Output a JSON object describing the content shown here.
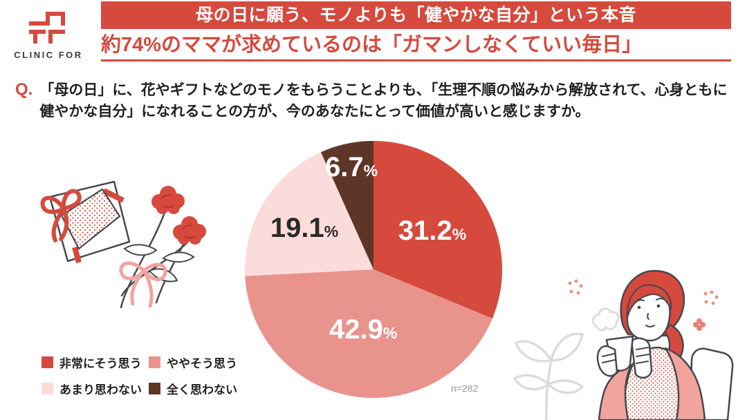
{
  "brand": {
    "name": "CLINIC FOR"
  },
  "header": {
    "banner_title": "母の日に願う、モノよりも「健やかな自分」という本音",
    "subtitle": "約74%のママが求めているのは「ガマンしなくていい毎日」"
  },
  "question": {
    "prefix": "Q.",
    "lines": [
      "「母の日」に、花やギフトなどのモノをもらうことよりも、「生理不順の悩みから解放されて、心身ともに",
      "健やかな自分」になれることの方が、今のあなたにとって価値が高いと感じますか。"
    ]
  },
  "chart_data": {
    "type": "pie",
    "title": "母の日に関する意識調査の回答割合",
    "unit": "%",
    "sample_note": "n=282",
    "start_angle_deg": -90,
    "direction": "clockwise",
    "legend_position": "bottom-left",
    "segments": [
      {
        "label": "非常にそう思う",
        "value": 31.2,
        "color": "#d6493d",
        "label_color": "#ffffff",
        "label_radius": 0.55
      },
      {
        "label": "ややそう思う",
        "value": 42.9,
        "color": "#e8938c",
        "label_color": "#ffffff",
        "label_radius": 0.47
      },
      {
        "label": "あまり思わない",
        "value": 19.1,
        "color": "#fbdcdb",
        "label_color": "#2b2b2b",
        "label_radius": 0.63
      },
      {
        "label": "全く思わない",
        "value": 6.7,
        "color": "#5e3627",
        "label_color": "#ffffff",
        "label_radius": 0.82
      }
    ]
  },
  "colors": {
    "brand_red": "#d6493d",
    "accent_pink": "#f2a39d",
    "line_dark": "#47474f",
    "line_light": "#dcdcdc",
    "note_gray": "#999999",
    "text_dark": "#1f1f1f"
  },
  "illustrations": {
    "left": "gift-box-with-card-and-carnation-bouquet",
    "right": "woman-relaxing-with-warm-drink"
  }
}
